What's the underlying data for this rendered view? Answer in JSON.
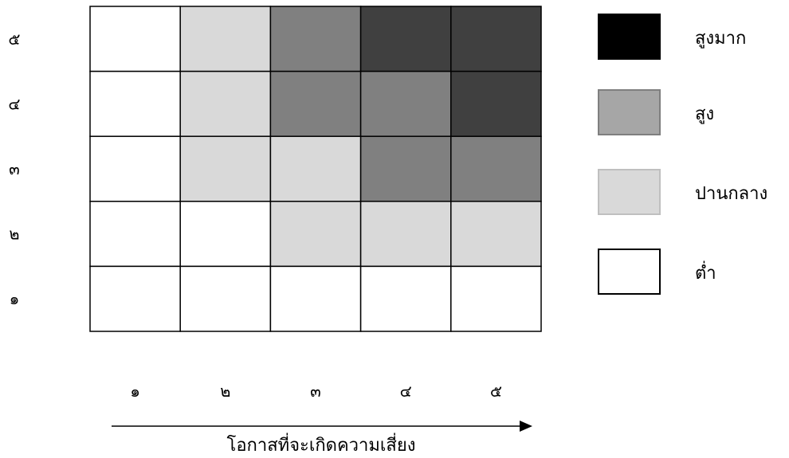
{
  "chart_data": {
    "type": "heatmap",
    "title": "",
    "xlabel": "โอกาสที่จะเกิดความเสี่ยง",
    "ylabel": "",
    "x_ticks": [
      "๑",
      "๒",
      "๓",
      "๔",
      "๕"
    ],
    "y_ticks": [
      "๑",
      "๒",
      "๓",
      "๔",
      "๕"
    ],
    "x": [
      1,
      2,
      3,
      4,
      5
    ],
    "y": [
      1,
      2,
      3,
      4,
      5
    ],
    "levels": [
      "ต่ำ",
      "ปานกลาง",
      "สูง",
      "สูงมาก"
    ],
    "grid": [
      {
        "y": 5,
        "values": [
          "ต่ำ",
          "ปานกลาง",
          "สูง",
          "สูงมาก",
          "สูงมาก"
        ]
      },
      {
        "y": 4,
        "values": [
          "ต่ำ",
          "ปานกลาง",
          "สูง",
          "สูง",
          "สูงมาก"
        ]
      },
      {
        "y": 3,
        "values": [
          "ต่ำ",
          "ปานกลาง",
          "ปานกลาง",
          "สูง",
          "สูง"
        ]
      },
      {
        "y": 2,
        "values": [
          "ต่ำ",
          "ต่ำ",
          "ปานกลาง",
          "ปานกลาง",
          "ปานกลาง"
        ]
      },
      {
        "y": 1,
        "values": [
          "ต่ำ",
          "ต่ำ",
          "ต่ำ",
          "ต่ำ",
          "ต่ำ"
        ]
      }
    ],
    "cell_colors": {
      "ต่ำ": "#ffffff",
      "ปานกลาง": "#d9d9d9",
      "สูง": "#808080",
      "สูงมาก": "#404040"
    },
    "legend": [
      {
        "label": "สูงมาก",
        "color": "#000000",
        "border": "#000000"
      },
      {
        "label": "สูง",
        "color": "#a6a6a6",
        "border": "#7f7f7f"
      },
      {
        "label": "ปานกลาง",
        "color": "#d9d9d9",
        "border": "#bfbfbf"
      },
      {
        "label": "ต่ำ",
        "color": "#ffffff",
        "border": "#000000"
      }
    ],
    "legend_position": "right"
  }
}
